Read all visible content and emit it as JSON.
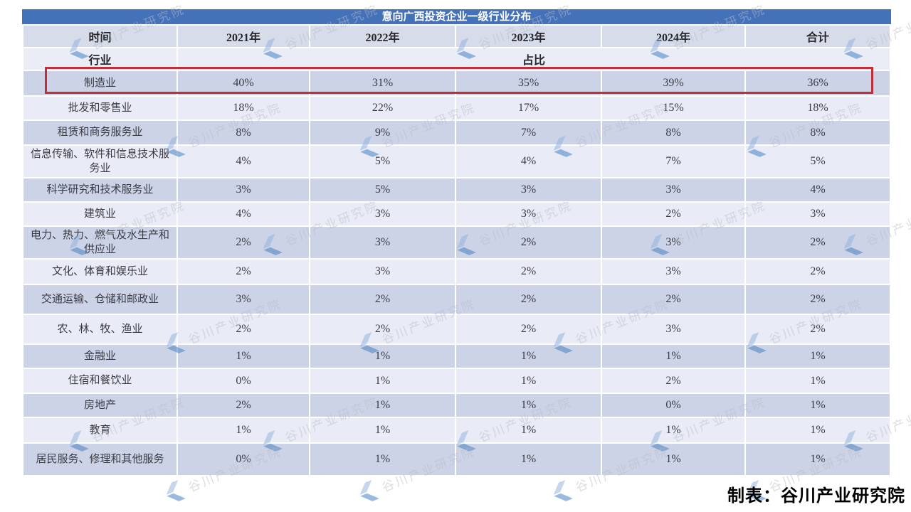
{
  "title": "意向广西投资企业一级行业分布",
  "header": {
    "time_label": "时间",
    "industry_label": "行业",
    "share_label": "占比",
    "columns": [
      "2021年",
      "2022年",
      "2023年",
      "2024年",
      "合计"
    ]
  },
  "rows": [
    {
      "industry": "制造业",
      "values": [
        "40%",
        "31%",
        "35%",
        "39%",
        "36%"
      ],
      "highlight": true
    },
    {
      "industry": "批发和零售业",
      "values": [
        "18%",
        "22%",
        "17%",
        "15%",
        "18%"
      ],
      "highlight": false
    },
    {
      "industry": "租赁和商务服务业",
      "values": [
        "8%",
        "9%",
        "7%",
        "8%",
        "8%"
      ],
      "highlight": false
    },
    {
      "industry": "信息传输、软件和信息技术服务业",
      "values": [
        "4%",
        "5%",
        "4%",
        "7%",
        "5%"
      ],
      "highlight": false
    },
    {
      "industry": "科学研究和技术服务业",
      "values": [
        "3%",
        "5%",
        "3%",
        "3%",
        "4%"
      ],
      "highlight": false
    },
    {
      "industry": "建筑业",
      "values": [
        "4%",
        "3%",
        "3%",
        "2%",
        "3%"
      ],
      "highlight": false
    },
    {
      "industry": "电力、热力、燃气及水生产和供应业",
      "values": [
        "2%",
        "3%",
        "2%",
        "3%",
        "2%"
      ],
      "highlight": false
    },
    {
      "industry": "文化、体育和娱乐业",
      "values": [
        "2%",
        "3%",
        "2%",
        "3%",
        "2%"
      ],
      "highlight": false
    },
    {
      "industry": "交通运输、仓储和邮政业",
      "values": [
        "3%",
        "2%",
        "2%",
        "2%",
        "2%"
      ],
      "highlight": false
    },
    {
      "industry": "农、林、牧、渔业",
      "values": [
        "2%",
        "2%",
        "2%",
        "3%",
        "2%"
      ],
      "highlight": false
    },
    {
      "industry": "金融业",
      "values": [
        "1%",
        "1%",
        "1%",
        "1%",
        "1%"
      ],
      "highlight": false
    },
    {
      "industry": "住宿和餐饮业",
      "values": [
        "0%",
        "1%",
        "1%",
        "2%",
        "1%"
      ],
      "highlight": false
    },
    {
      "industry": "房地产",
      "values": [
        "2%",
        "1%",
        "1%",
        "0%",
        "1%"
      ],
      "highlight": false
    },
    {
      "industry": "教育",
      "values": [
        "1%",
        "1%",
        "1%",
        "1%",
        "1%"
      ],
      "highlight": false
    },
    {
      "industry": "居民服务、修理和其他服务",
      "values": [
        "0%",
        "1%",
        "1%",
        "1%",
        "1%"
      ],
      "highlight": false
    }
  ],
  "footer": {
    "text": "制表：谷川产业研究院"
  },
  "watermark": {
    "text": "谷川产业研究院"
  },
  "colors": {
    "title_bar": "#4472b9",
    "header_row1_bg": "#d6dcea",
    "header_row2_bg": "#eaedf5",
    "row_dark_bg": "#ccd3e7",
    "row_light_bg": "#e9ecf6",
    "highlight_border": "#c13038",
    "watermark_logo_light": "#8fb0dd",
    "watermark_logo_dark": "#3a78bd"
  },
  "chart_data": {
    "type": "table",
    "title": "意向广西投资企业一级行业分布",
    "row_axis_label": "行业",
    "col_axis_label": "时间",
    "value_label": "占比",
    "columns": [
      "2021年",
      "2022年",
      "2023年",
      "2024年",
      "合计"
    ],
    "rows": [
      {
        "industry": "制造业",
        "values_pct": [
          40,
          31,
          35,
          39,
          36
        ]
      },
      {
        "industry": "批发和零售业",
        "values_pct": [
          18,
          22,
          17,
          15,
          18
        ]
      },
      {
        "industry": "租赁和商务服务业",
        "values_pct": [
          8,
          9,
          7,
          8,
          8
        ]
      },
      {
        "industry": "信息传输、软件和信息技术服务业",
        "values_pct": [
          4,
          5,
          4,
          7,
          5
        ]
      },
      {
        "industry": "科学研究和技术服务业",
        "values_pct": [
          3,
          5,
          3,
          3,
          4
        ]
      },
      {
        "industry": "建筑业",
        "values_pct": [
          4,
          3,
          3,
          2,
          3
        ]
      },
      {
        "industry": "电力、热力、燃气及水生产和供应业",
        "values_pct": [
          2,
          3,
          2,
          3,
          2
        ]
      },
      {
        "industry": "文化、体育和娱乐业",
        "values_pct": [
          2,
          3,
          2,
          3,
          2
        ]
      },
      {
        "industry": "交通运输、仓储和邮政业",
        "values_pct": [
          3,
          2,
          2,
          2,
          2
        ]
      },
      {
        "industry": "农、林、牧、渔业",
        "values_pct": [
          2,
          2,
          2,
          3,
          2
        ]
      },
      {
        "industry": "金融业",
        "values_pct": [
          1,
          1,
          1,
          1,
          1
        ]
      },
      {
        "industry": "住宿和餐饮业",
        "values_pct": [
          0,
          1,
          1,
          2,
          1
        ]
      },
      {
        "industry": "房地产",
        "values_pct": [
          2,
          1,
          1,
          0,
          1
        ]
      },
      {
        "industry": "教育",
        "values_pct": [
          1,
          1,
          1,
          1,
          1
        ]
      },
      {
        "industry": "居民服务、修理和其他服务",
        "values_pct": [
          0,
          1,
          1,
          1,
          1
        ]
      }
    ],
    "highlighted_row": "制造业"
  }
}
